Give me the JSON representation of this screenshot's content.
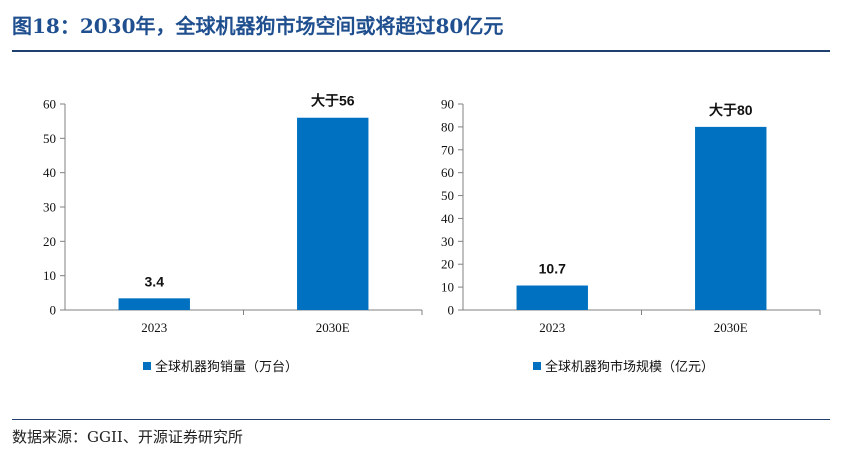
{
  "header": {
    "title": "图18：2030年，全球机器狗市场空间或将超过80亿元"
  },
  "footer": {
    "source": "数据来源：GGII、开源证券研究所"
  },
  "colors": {
    "bar": "#0070c0",
    "axis": "#808080",
    "rule": "#1f3f6f"
  },
  "chart_data": [
    {
      "type": "bar",
      "categories": [
        "2023",
        "2030E"
      ],
      "values": [
        3.4,
        56
      ],
      "data_labels": [
        "3.4",
        "大于56"
      ],
      "ylim": [
        0,
        60
      ],
      "yticks": [
        0,
        10,
        20,
        30,
        40,
        50,
        60
      ],
      "legend": "全球机器狗销量（万台）",
      "legend_position": "bottom",
      "grid": false
    },
    {
      "type": "bar",
      "categories": [
        "2023",
        "2030E"
      ],
      "values": [
        10.7,
        80
      ],
      "data_labels": [
        "10.7",
        "大于80"
      ],
      "ylim": [
        0,
        90
      ],
      "yticks": [
        0,
        10,
        20,
        30,
        40,
        50,
        60,
        70,
        80,
        90
      ],
      "legend": "全球机器狗市场规模（亿元）",
      "legend_position": "bottom",
      "grid": false
    }
  ]
}
